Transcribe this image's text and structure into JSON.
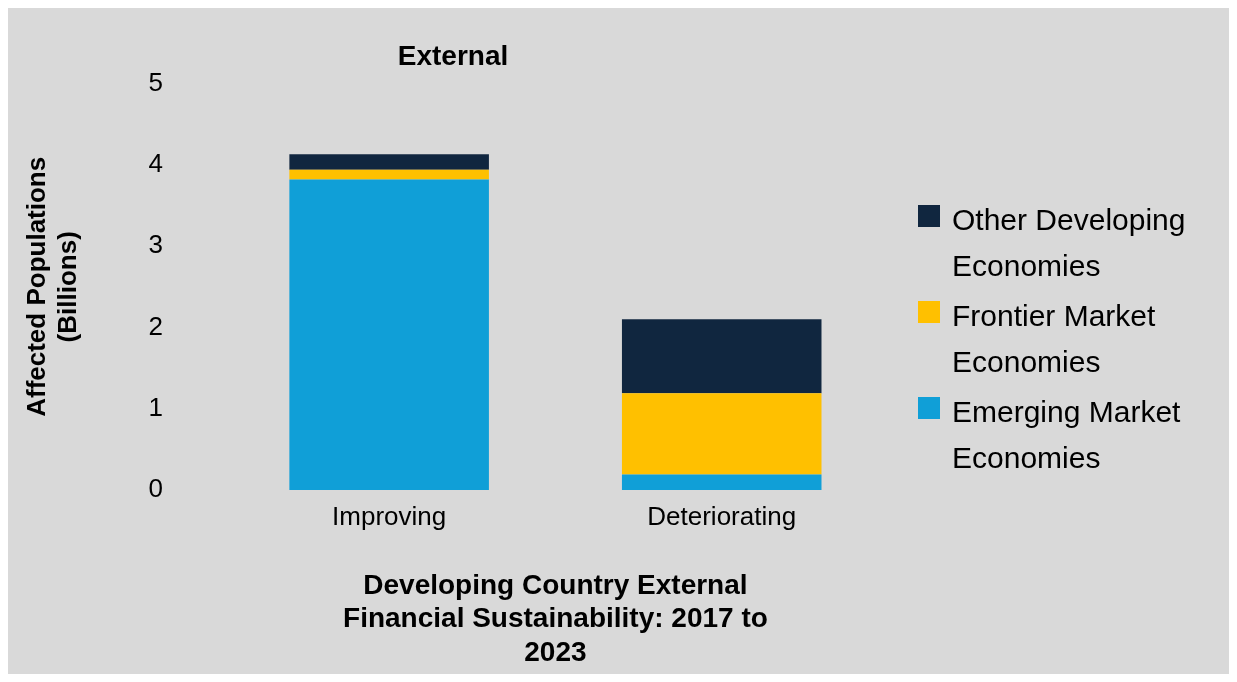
{
  "chart_data": {
    "type": "bar",
    "stacked": true,
    "title": "External",
    "xlabel": "Developing Country External Financial Sustainability: 2017 to 2023",
    "ylabel": "Affected Populations (Billions)",
    "categories": [
      "Improving",
      "Deteriorating"
    ],
    "ylim": [
      0,
      5
    ],
    "yticks": [
      0,
      1,
      2,
      3,
      4,
      5
    ],
    "grid": false,
    "legend": "right",
    "series": [
      {
        "name": "Emerging Market Economies",
        "color": "#109fd7",
        "values": [
          3.82,
          0.19
        ]
      },
      {
        "name": "Frontier Market Economies",
        "color": "#ffc000",
        "values": [
          0.12,
          1.0
        ]
      },
      {
        "name": "Other Developing Economies",
        "color": "#10263f",
        "values": [
          0.19,
          0.91
        ]
      }
    ]
  }
}
